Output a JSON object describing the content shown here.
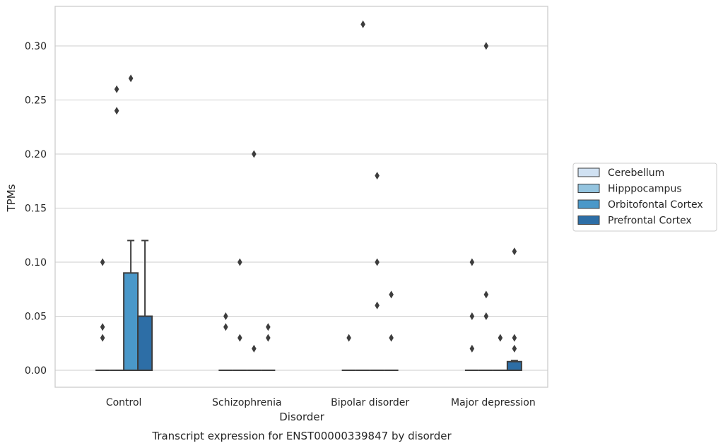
{
  "chart_data": {
    "type": "box",
    "title": "Transcript expression for ENST00000339847 by disorder",
    "xlabel": "Disorder",
    "ylabel": "TPMs",
    "categories": [
      "Control",
      "Schizophrenia",
      "Bipolar disorder",
      "Major depression"
    ],
    "ylim": [
      -0.016,
      0.337
    ],
    "yticks": [
      0.0,
      0.05,
      0.1,
      0.15,
      0.2,
      0.25,
      0.3
    ],
    "ytick_labels": [
      "0.00",
      "0.05",
      "0.10",
      "0.15",
      "0.20",
      "0.25",
      "0.30"
    ],
    "grid": "horizontal",
    "legend_position": "right",
    "series": [
      {
        "name": "Cerebellum",
        "color": "#d0e1f2",
        "boxes": [
          {
            "q1": 0,
            "median": 0,
            "q3": 0,
            "whislo": 0,
            "whishi": 0,
            "fliers": [
              0.1,
              0.04,
              0.03
            ]
          },
          {
            "q1": 0,
            "median": 0,
            "q3": 0,
            "whislo": 0,
            "whishi": 0,
            "fliers": [
              0.05,
              0.04
            ]
          },
          {
            "q1": 0,
            "median": 0,
            "q3": 0,
            "whislo": 0,
            "whishi": 0,
            "fliers": [
              0.03
            ]
          },
          {
            "q1": 0,
            "median": 0,
            "q3": 0,
            "whislo": 0,
            "whishi": 0,
            "fliers": [
              0.1,
              0.05,
              0.02
            ]
          }
        ]
      },
      {
        "name": "Hipppocampus",
        "color": "#94c4df",
        "boxes": [
          {
            "q1": 0,
            "median": 0,
            "q3": 0,
            "whislo": 0,
            "whishi": 0,
            "fliers": [
              0.26,
              0.24
            ]
          },
          {
            "q1": 0,
            "median": 0,
            "q3": 0,
            "whislo": 0,
            "whishi": 0,
            "fliers": [
              0.1,
              0.03
            ]
          },
          {
            "q1": 0,
            "median": 0,
            "q3": 0,
            "whislo": 0,
            "whishi": 0,
            "fliers": [
              0.32
            ]
          },
          {
            "q1": 0,
            "median": 0,
            "q3": 0,
            "whislo": 0,
            "whishi": 0,
            "fliers": [
              0.3,
              0.07,
              0.05
            ]
          }
        ]
      },
      {
        "name": "Orbitofontal Cortex",
        "color": "#4a98c9",
        "boxes": [
          {
            "q1": 0,
            "median": 0,
            "q3": 0.09,
            "whislo": 0,
            "whishi": 0.12,
            "fliers": [
              0.27
            ]
          },
          {
            "q1": 0,
            "median": 0,
            "q3": 0,
            "whislo": 0,
            "whishi": 0,
            "fliers": [
              0.2,
              0.02
            ]
          },
          {
            "q1": 0,
            "median": 0,
            "q3": 0,
            "whislo": 0,
            "whishi": 0,
            "fliers": [
              0.18,
              0.1,
              0.06
            ]
          },
          {
            "q1": 0,
            "median": 0,
            "q3": 0,
            "whislo": 0,
            "whishi": 0,
            "fliers": [
              0.03
            ]
          }
        ]
      },
      {
        "name": "Prefrontal Cortex",
        "color": "#2d6ea6",
        "boxes": [
          {
            "q1": 0,
            "median": 0,
            "q3": 0.05,
            "whislo": 0,
            "whishi": 0.12,
            "fliers": []
          },
          {
            "q1": 0,
            "median": 0,
            "q3": 0,
            "whislo": 0,
            "whishi": 0,
            "fliers": [
              0.04,
              0.03
            ]
          },
          {
            "q1": 0,
            "median": 0,
            "q3": 0,
            "whislo": 0,
            "whishi": 0,
            "fliers": [
              0.07,
              0.03
            ]
          },
          {
            "q1": 0,
            "median": 0,
            "q3": 0.008,
            "whislo": 0,
            "whishi": 0.009,
            "fliers": [
              0.11,
              0.03,
              0.02
            ]
          }
        ]
      }
    ]
  }
}
